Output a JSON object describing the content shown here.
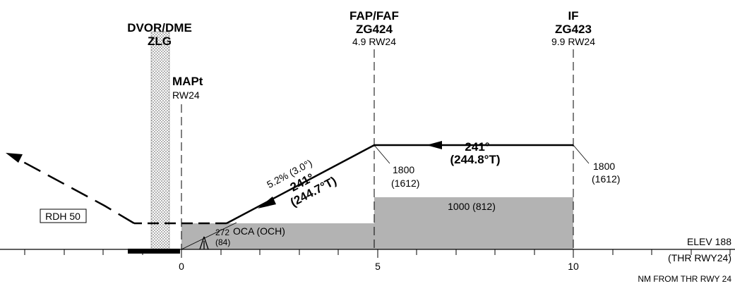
{
  "fixes": {
    "dvor": {
      "name": "DVOR/DME",
      "ident": "ZLG"
    },
    "faf": {
      "name": "FAP/FAF",
      "ident": "ZG424",
      "dist": "4.9 RW24"
    },
    "if": {
      "name": "IF",
      "ident": "ZG423",
      "dist": "9.9 RW24"
    },
    "mapt": {
      "name": "MAPt",
      "dist": "RW24"
    }
  },
  "inbound": {
    "track": "241°",
    "true_track": "(244.8°T)"
  },
  "final": {
    "gradient": "5.2% (3.0°)",
    "track": "241°",
    "true_track": "(244.7°T)"
  },
  "altitudes": {
    "faf_alt": "1800",
    "faf_height": "(1612)",
    "if_alt": "1800",
    "if_height": "(1612)",
    "step": "1000 (812)",
    "oca_label": "OCA (OCH)",
    "obstacle_alt": "272",
    "obstacle_height": "(84)"
  },
  "rdh": "RDH 50",
  "elevation": {
    "elev": "ELEV 188",
    "ref": "(THR RWY24)"
  },
  "axis": {
    "ticks": [
      "0",
      "5",
      "10"
    ],
    "label": "NM FROM THR RWY 24"
  },
  "colors": {
    "fill": "#b3b3b3",
    "line": "#000000"
  }
}
